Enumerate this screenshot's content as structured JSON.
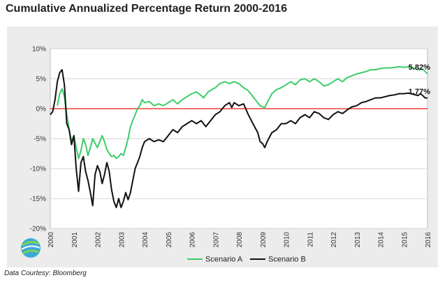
{
  "chart_data": {
    "type": "line",
    "title": "Cumulative Annualized Percentage Return 2000-2016",
    "xlabel": "",
    "ylabel": "",
    "xlim": [
      2000,
      2016
    ],
    "ylim": [
      -20,
      10
    ],
    "y_ticks": [
      10,
      5,
      0,
      -5,
      -10,
      -15,
      -20
    ],
    "y_tick_labels": [
      "10%",
      "5%",
      "0%",
      "-5%",
      "-10%",
      "-15%",
      "-20%"
    ],
    "x_ticks": [
      2000,
      2001,
      2002,
      2003,
      2004,
      2005,
      2006,
      2007,
      2008,
      2009,
      2010,
      2011,
      2012,
      2013,
      2014,
      2015,
      2016
    ],
    "x_tick_labels": [
      "2000",
      "2001",
      "2002",
      "2003",
      "2004",
      "2005",
      "2006",
      "2007",
      "2008",
      "2009",
      "2010",
      "2011",
      "2012",
      "2013",
      "2014",
      "2015",
      "2016"
    ],
    "reference_line": {
      "y": 0,
      "color": "#e8413a"
    },
    "legend_position": "bottom-center",
    "series": [
      {
        "name": "Scenario A",
        "color": "#3dcc6a",
        "end_label": "5.82%",
        "points": [
          [
            2000.3,
            0.5
          ],
          [
            2000.4,
            2.5
          ],
          [
            2000.5,
            3.3
          ],
          [
            2000.6,
            2.0
          ],
          [
            2000.7,
            -1.0
          ],
          [
            2000.8,
            -3.5
          ],
          [
            2000.9,
            -5.5
          ],
          [
            2001.0,
            -4.5
          ],
          [
            2001.1,
            -6.5
          ],
          [
            2001.2,
            -8.3
          ],
          [
            2001.3,
            -7.0
          ],
          [
            2001.4,
            -5.0
          ],
          [
            2001.5,
            -6.0
          ],
          [
            2001.6,
            -7.8
          ],
          [
            2001.7,
            -6.5
          ],
          [
            2001.8,
            -5.0
          ],
          [
            2002.0,
            -6.5
          ],
          [
            2002.1,
            -5.5
          ],
          [
            2002.2,
            -4.5
          ],
          [
            2002.3,
            -5.5
          ],
          [
            2002.4,
            -6.8
          ],
          [
            2002.5,
            -7.5
          ],
          [
            2002.6,
            -8.0
          ],
          [
            2002.7,
            -7.8
          ],
          [
            2002.8,
            -8.3
          ],
          [
            2002.9,
            -8.0
          ],
          [
            2003.0,
            -7.5
          ],
          [
            2003.1,
            -7.8
          ],
          [
            2003.2,
            -6.5
          ],
          [
            2003.3,
            -5.0
          ],
          [
            2003.4,
            -3.0
          ],
          [
            2003.5,
            -2.0
          ],
          [
            2003.6,
            -1.0
          ],
          [
            2003.7,
            0.0
          ],
          [
            2003.8,
            0.5
          ],
          [
            2003.9,
            1.5
          ],
          [
            2004.0,
            1.0
          ],
          [
            2004.2,
            1.2
          ],
          [
            2004.4,
            0.5
          ],
          [
            2004.6,
            0.8
          ],
          [
            2004.8,
            0.5
          ],
          [
            2005.0,
            1.0
          ],
          [
            2005.2,
            1.5
          ],
          [
            2005.4,
            0.8
          ],
          [
            2005.6,
            1.5
          ],
          [
            2005.8,
            2.0
          ],
          [
            2006.0,
            2.5
          ],
          [
            2006.2,
            2.8
          ],
          [
            2006.4,
            2.2
          ],
          [
            2006.5,
            1.8
          ],
          [
            2006.7,
            2.8
          ],
          [
            2006.9,
            3.3
          ],
          [
            2007.0,
            3.5
          ],
          [
            2007.2,
            4.2
          ],
          [
            2007.4,
            4.5
          ],
          [
            2007.6,
            4.2
          ],
          [
            2007.8,
            4.5
          ],
          [
            2008.0,
            4.2
          ],
          [
            2008.2,
            3.5
          ],
          [
            2008.4,
            3.0
          ],
          [
            2008.6,
            2.0
          ],
          [
            2008.8,
            1.0
          ],
          [
            2008.9,
            0.5
          ],
          [
            2009.0,
            0.3
          ],
          [
            2009.1,
            0.2
          ],
          [
            2009.2,
            1.0
          ],
          [
            2009.4,
            2.5
          ],
          [
            2009.6,
            3.2
          ],
          [
            2009.8,
            3.5
          ],
          [
            2010.0,
            4.0
          ],
          [
            2010.2,
            4.5
          ],
          [
            2010.4,
            4.0
          ],
          [
            2010.6,
            4.8
          ],
          [
            2010.8,
            5.0
          ],
          [
            2011.0,
            4.5
          ],
          [
            2011.2,
            5.0
          ],
          [
            2011.4,
            4.5
          ],
          [
            2011.6,
            3.8
          ],
          [
            2011.8,
            4.0
          ],
          [
            2012.0,
            4.5
          ],
          [
            2012.2,
            5.0
          ],
          [
            2012.4,
            4.5
          ],
          [
            2012.6,
            5.2
          ],
          [
            2012.8,
            5.5
          ],
          [
            2013.0,
            5.8
          ],
          [
            2013.2,
            6.0
          ],
          [
            2013.4,
            6.2
          ],
          [
            2013.6,
            6.5
          ],
          [
            2013.8,
            6.5
          ],
          [
            2014.0,
            6.7
          ],
          [
            2014.2,
            6.8
          ],
          [
            2014.4,
            6.8
          ],
          [
            2014.6,
            6.9
          ],
          [
            2014.8,
            7.0
          ],
          [
            2015.0,
            6.9
          ],
          [
            2015.2,
            7.0
          ],
          [
            2015.4,
            6.8
          ],
          [
            2015.6,
            6.5
          ],
          [
            2015.8,
            6.6
          ],
          [
            2015.9,
            6.2
          ],
          [
            2016.0,
            5.82
          ]
        ]
      },
      {
        "name": "Scenario B",
        "color": "#111111",
        "end_label": "1.77%",
        "points": [
          [
            2000.0,
            -1.0
          ],
          [
            2000.1,
            -0.5
          ],
          [
            2000.2,
            1.5
          ],
          [
            2000.3,
            4.5
          ],
          [
            2000.4,
            6.0
          ],
          [
            2000.5,
            6.5
          ],
          [
            2000.6,
            4.0
          ],
          [
            2000.7,
            -2.5
          ],
          [
            2000.8,
            -3.5
          ],
          [
            2000.9,
            -6.0
          ],
          [
            2001.0,
            -4.5
          ],
          [
            2001.1,
            -10.0
          ],
          [
            2001.2,
            -13.8
          ],
          [
            2001.3,
            -9.0
          ],
          [
            2001.4,
            -8.0
          ],
          [
            2001.5,
            -10.5
          ],
          [
            2001.6,
            -12.0
          ],
          [
            2001.7,
            -14.0
          ],
          [
            2001.8,
            -16.2
          ],
          [
            2001.9,
            -11.0
          ],
          [
            2002.0,
            -9.5
          ],
          [
            2002.1,
            -10.5
          ],
          [
            2002.2,
            -12.5
          ],
          [
            2002.3,
            -11.0
          ],
          [
            2002.4,
            -9.0
          ],
          [
            2002.5,
            -10.5
          ],
          [
            2002.6,
            -13.5
          ],
          [
            2002.7,
            -15.5
          ],
          [
            2002.8,
            -16.5
          ],
          [
            2002.9,
            -15.0
          ],
          [
            2003.0,
            -16.5
          ],
          [
            2003.1,
            -15.5
          ],
          [
            2003.2,
            -14.0
          ],
          [
            2003.3,
            -15.2
          ],
          [
            2003.4,
            -14.0
          ],
          [
            2003.5,
            -12.0
          ],
          [
            2003.6,
            -10.0
          ],
          [
            2003.7,
            -9.0
          ],
          [
            2003.8,
            -8.0
          ],
          [
            2003.9,
            -6.5
          ],
          [
            2004.0,
            -5.5
          ],
          [
            2004.2,
            -5.0
          ],
          [
            2004.4,
            -5.5
          ],
          [
            2004.6,
            -5.2
          ],
          [
            2004.8,
            -5.5
          ],
          [
            2005.0,
            -4.5
          ],
          [
            2005.2,
            -3.5
          ],
          [
            2005.4,
            -4.0
          ],
          [
            2005.6,
            -3.0
          ],
          [
            2005.8,
            -2.5
          ],
          [
            2006.0,
            -2.0
          ],
          [
            2006.2,
            -2.5
          ],
          [
            2006.4,
            -2.0
          ],
          [
            2006.6,
            -3.0
          ],
          [
            2006.8,
            -2.0
          ],
          [
            2007.0,
            -1.0
          ],
          [
            2007.2,
            -0.5
          ],
          [
            2007.4,
            0.5
          ],
          [
            2007.6,
            1.0
          ],
          [
            2007.7,
            0.2
          ],
          [
            2007.8,
            1.0
          ],
          [
            2008.0,
            0.5
          ],
          [
            2008.2,
            0.8
          ],
          [
            2008.4,
            -1.0
          ],
          [
            2008.6,
            -2.5
          ],
          [
            2008.8,
            -4.0
          ],
          [
            2008.9,
            -5.5
          ],
          [
            2009.0,
            -5.8
          ],
          [
            2009.1,
            -6.5
          ],
          [
            2009.2,
            -5.5
          ],
          [
            2009.4,
            -4.0
          ],
          [
            2009.6,
            -3.5
          ],
          [
            2009.8,
            -2.5
          ],
          [
            2010.0,
            -2.5
          ],
          [
            2010.2,
            -2.0
          ],
          [
            2010.4,
            -2.5
          ],
          [
            2010.6,
            -1.5
          ],
          [
            2010.8,
            -1.0
          ],
          [
            2011.0,
            -1.5
          ],
          [
            2011.2,
            -0.5
          ],
          [
            2011.4,
            -0.8
          ],
          [
            2011.6,
            -1.5
          ],
          [
            2011.8,
            -1.8
          ],
          [
            2012.0,
            -1.0
          ],
          [
            2012.2,
            -0.5
          ],
          [
            2012.4,
            -0.8
          ],
          [
            2012.6,
            -0.2
          ],
          [
            2012.8,
            0.3
          ],
          [
            2013.0,
            0.5
          ],
          [
            2013.2,
            1.0
          ],
          [
            2013.4,
            1.2
          ],
          [
            2013.6,
            1.5
          ],
          [
            2013.8,
            1.8
          ],
          [
            2014.0,
            1.8
          ],
          [
            2014.2,
            2.0
          ],
          [
            2014.4,
            2.2
          ],
          [
            2014.6,
            2.3
          ],
          [
            2014.8,
            2.5
          ],
          [
            2015.0,
            2.5
          ],
          [
            2015.2,
            2.6
          ],
          [
            2015.4,
            2.4
          ],
          [
            2015.6,
            2.2
          ],
          [
            2015.7,
            2.5
          ],
          [
            2015.8,
            2.2
          ],
          [
            2015.9,
            1.8
          ],
          [
            2016.0,
            1.77
          ]
        ]
      }
    ]
  },
  "footer": {
    "source": "Data Courtesy: Bloomberg"
  }
}
